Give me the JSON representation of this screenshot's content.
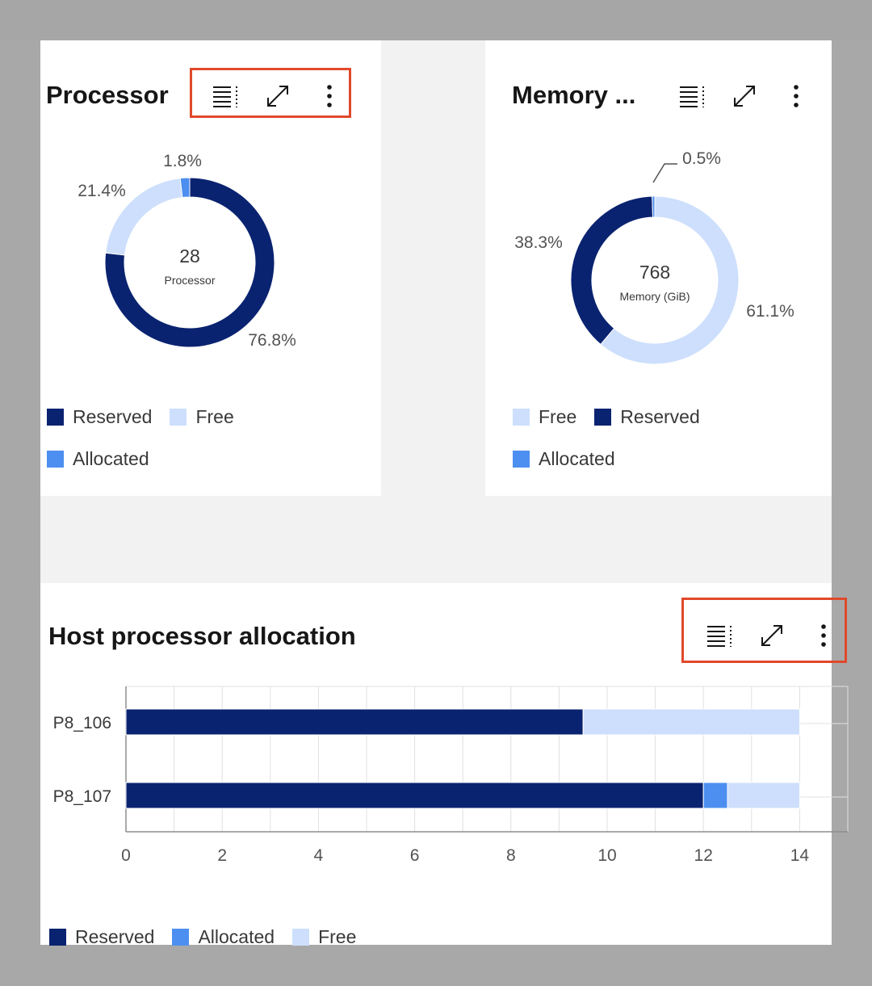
{
  "colors": {
    "reserved": "#0a2370",
    "allocated": "#4d8ff0",
    "free": "#cddffc",
    "highlight": "#e0492b"
  },
  "toolbar_icons": [
    "table-view-icon",
    "maximize-icon",
    "overflow-menu-icon"
  ],
  "processor_card": {
    "title": "Processor",
    "center_value": "28",
    "center_label": "Processor",
    "legend": [
      "Reserved",
      "Free",
      "Allocated"
    ]
  },
  "memory_card": {
    "title": "Memory ...",
    "center_value": "768",
    "center_label": "Memory (GiB)",
    "legend": [
      "Free",
      "Reserved",
      "Allocated"
    ]
  },
  "host_card": {
    "title": "Host processor allocation",
    "legend": [
      "Reserved",
      "Allocated",
      "Free"
    ]
  },
  "chart_data": [
    {
      "type": "pie",
      "title": "Processor",
      "total": 28,
      "slices": [
        {
          "name": "Reserved",
          "value": 76.8,
          "label": "76.8%"
        },
        {
          "name": "Free",
          "value": 21.4,
          "label": "21.4%"
        },
        {
          "name": "Allocated",
          "value": 1.8,
          "label": "1.8%"
        }
      ]
    },
    {
      "type": "pie",
      "title": "Memory ...",
      "total": 768,
      "slices": [
        {
          "name": "Free",
          "value": 61.1,
          "label": "61.1%"
        },
        {
          "name": "Reserved",
          "value": 38.3,
          "label": "38.3%"
        },
        {
          "name": "Allocated",
          "value": 0.5,
          "label": "0.5%"
        }
      ]
    },
    {
      "type": "bar",
      "orientation": "horizontal",
      "stacked": true,
      "title": "Host processor allocation",
      "categories": [
        "P8_106",
        "P8_107"
      ],
      "series": [
        {
          "name": "Reserved",
          "values": [
            9.5,
            12
          ]
        },
        {
          "name": "Allocated",
          "values": [
            0,
            0.5
          ]
        },
        {
          "name": "Free",
          "values": [
            4.5,
            1.5
          ]
        }
      ],
      "xlim": [
        0,
        15
      ],
      "xticks": [
        0,
        2,
        4,
        6,
        8,
        10,
        12,
        14
      ],
      "grid": true,
      "legend_position": "bottom-left"
    }
  ]
}
